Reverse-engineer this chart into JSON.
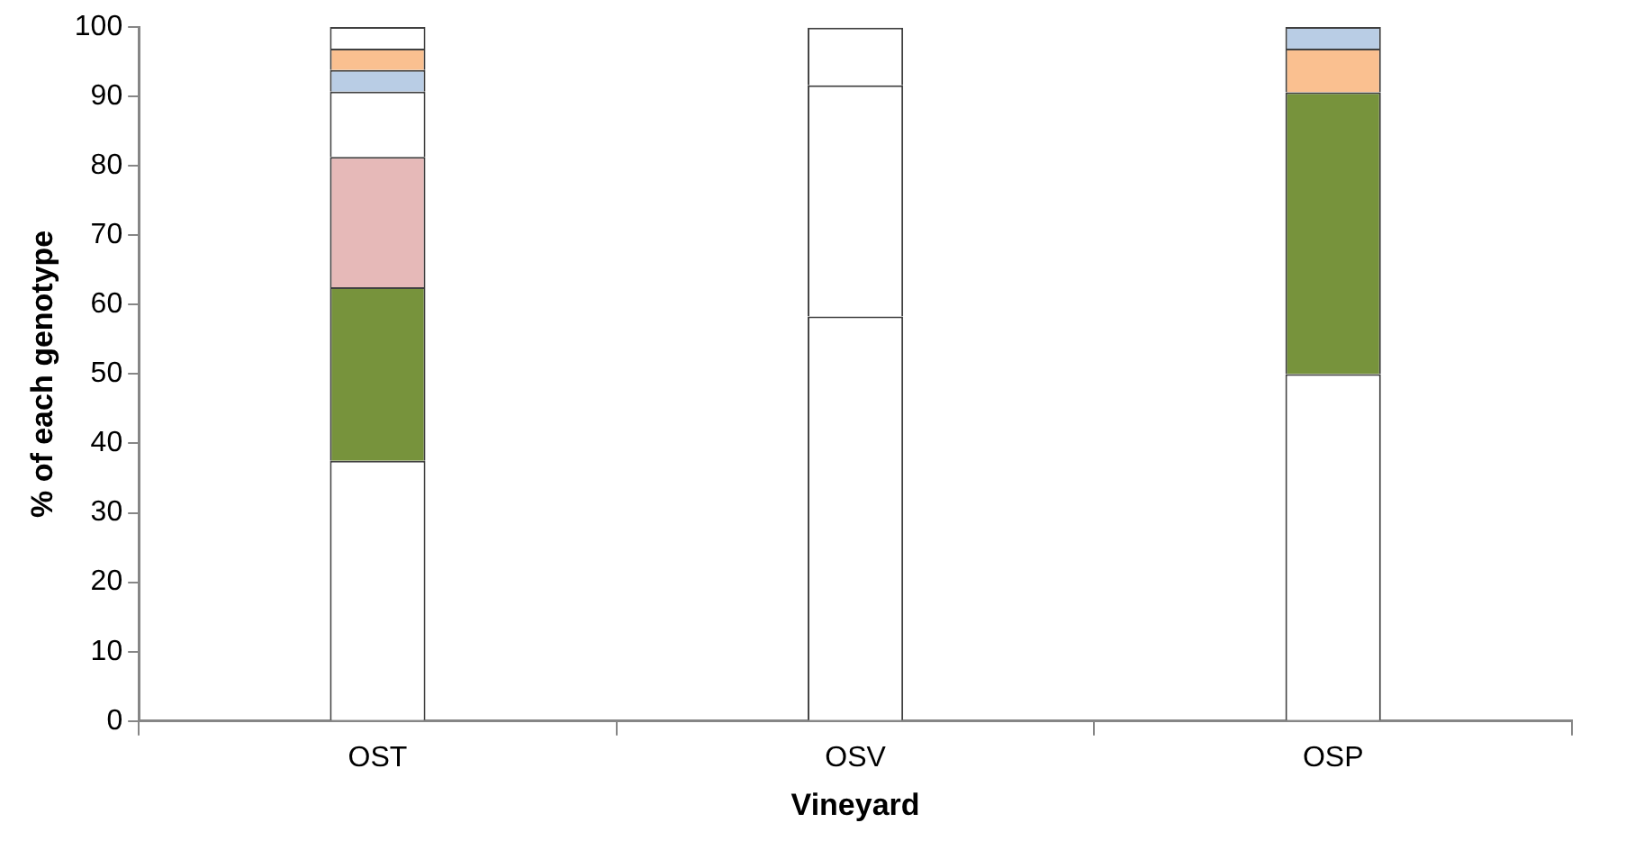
{
  "chart_data": {
    "type": "bar",
    "stacked": true,
    "xlabel": "Vineyard",
    "ylabel": "% of each genotype",
    "categories": [
      "OST",
      "OSV",
      "OSP"
    ],
    "ylim": [
      0,
      100
    ],
    "yticks": [
      0,
      10,
      20,
      30,
      40,
      50,
      60,
      70,
      80,
      90,
      100
    ],
    "grid": false,
    "legend": false,
    "series": [
      {
        "color": "#ffffff",
        "values": [
          37.5,
          58.3,
          50
        ]
      },
      {
        "color": "#77933c",
        "values": [
          25,
          null,
          40.6
        ]
      },
      {
        "color": "#e6b9b8",
        "values": [
          18.8,
          null,
          null
        ]
      },
      {
        "color": "#ffffff",
        "values": [
          9.4,
          33.3,
          null
        ]
      },
      {
        "color": "#b9cde5",
        "values": [
          3.1,
          null,
          null
        ]
      },
      {
        "color": "#fac090",
        "values": [
          3.1,
          null,
          6.3
        ]
      },
      {
        "color": "#ffffff",
        "values": [
          3.1,
          8.3,
          null
        ]
      },
      {
        "color": "#b9cde5",
        "values": [
          null,
          null,
          3.1
        ]
      }
    ]
  }
}
